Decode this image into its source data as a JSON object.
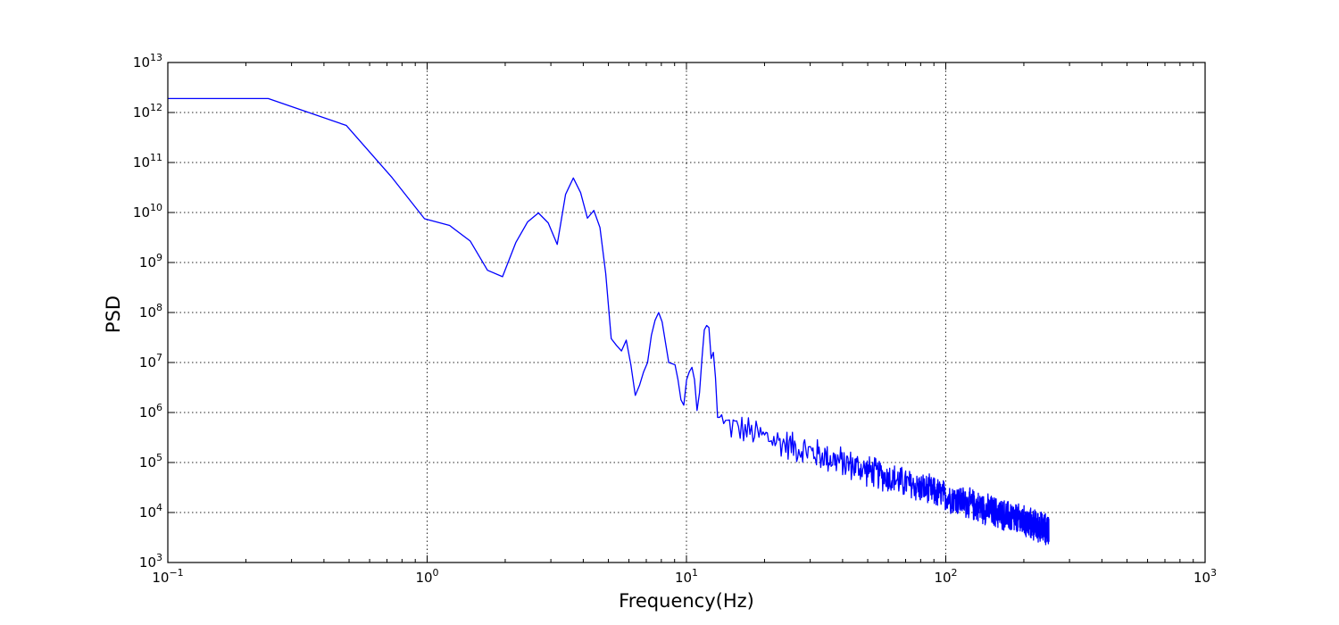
{
  "chart_data": {
    "type": "line",
    "title": "",
    "xlabel": "Frequency(Hz)",
    "ylabel": "PSD",
    "xscale": "log",
    "yscale": "log",
    "xlim": [
      0.1,
      1000
    ],
    "ylim": [
      1000,
      10000000000000
    ],
    "grid": true,
    "x_ticks": [
      {
        "value": 0.1,
        "base": "10",
        "exp": "−1"
      },
      {
        "value": 1,
        "base": "10",
        "exp": "0"
      },
      {
        "value": 10,
        "base": "10",
        "exp": "1"
      },
      {
        "value": 100,
        "base": "10",
        "exp": "2"
      },
      {
        "value": 1000,
        "base": "10",
        "exp": "3"
      }
    ],
    "y_ticks": [
      {
        "value": 1000,
        "base": "10",
        "exp": "3"
      },
      {
        "value": 10000,
        "base": "10",
        "exp": "4"
      },
      {
        "value": 100000,
        "base": "10",
        "exp": "5"
      },
      {
        "value": 1000000,
        "base": "10",
        "exp": "6"
      },
      {
        "value": 10000000,
        "base": "10",
        "exp": "7"
      },
      {
        "value": 100000000,
        "base": "10",
        "exp": "8"
      },
      {
        "value": 1000000000,
        "base": "10",
        "exp": "9"
      },
      {
        "value": 10000000000,
        "base": "10",
        "exp": "10"
      },
      {
        "value": 100000000000,
        "base": "10",
        "exp": "11"
      },
      {
        "value": 1000000000000,
        "base": "10",
        "exp": "12"
      },
      {
        "value": 10000000000000,
        "base": "10",
        "exp": "13"
      }
    ],
    "series": [
      {
        "color": "#0000ff",
        "x": [
          0.1,
          0.244,
          0.488,
          0.732,
          0.977,
          1.221,
          1.465,
          1.709,
          1.953,
          2.197,
          2.441,
          2.686,
          2.93,
          3.174,
          3.418,
          3.662,
          3.906,
          4.15,
          4.395,
          4.639,
          4.883,
          5.127,
          5.371,
          5.615,
          5.859,
          6.104,
          6.348,
          6.592,
          6.836,
          7.08,
          7.324,
          7.568,
          7.813,
          8.057,
          8.301,
          8.545,
          8.789,
          9.033,
          9.277,
          9.521,
          9.766,
          10.01,
          10.254,
          10.498,
          10.742,
          10.986,
          11.23,
          11.475,
          11.719,
          11.963,
          12.207,
          12.451,
          12.695,
          12.939,
          13.184,
          13.428,
          13.672,
          13.916
        ],
        "y": [
          1900000000000,
          1900000000000,
          550000000000,
          50000000000,
          7500000000,
          5500000000,
          2700000000,
          700000000,
          520000000,
          2500000000,
          6500000000,
          9800000000,
          6200000000,
          2300000000,
          23000000000,
          49000000000,
          25000000000,
          7700000000,
          11000000000,
          5000000000,
          600000000,
          30000000,
          22000000,
          17000000,
          28000000,
          9000000,
          2200000,
          3500000,
          6500000,
          10000000,
          35000000,
          70000000,
          100000000,
          65000000,
          25000000,
          10000000,
          9500000,
          9000000,
          4500000,
          1800000,
          1400000,
          4500000,
          6500000,
          8000000,
          4500000,
          1100000,
          2500000,
          12000000,
          45000000,
          55000000,
          50000000,
          12000000,
          16000000,
          5000000,
          800000,
          800000,
          900000,
          600000
        ],
        "noise_from_hz": 13.916,
        "noise_to_hz": 250,
        "noise_step_hz": 0.244,
        "noise_start_level": 600000,
        "noise_end_level": 4500,
        "noise_amplitude_decades": 0.35
      }
    ]
  }
}
